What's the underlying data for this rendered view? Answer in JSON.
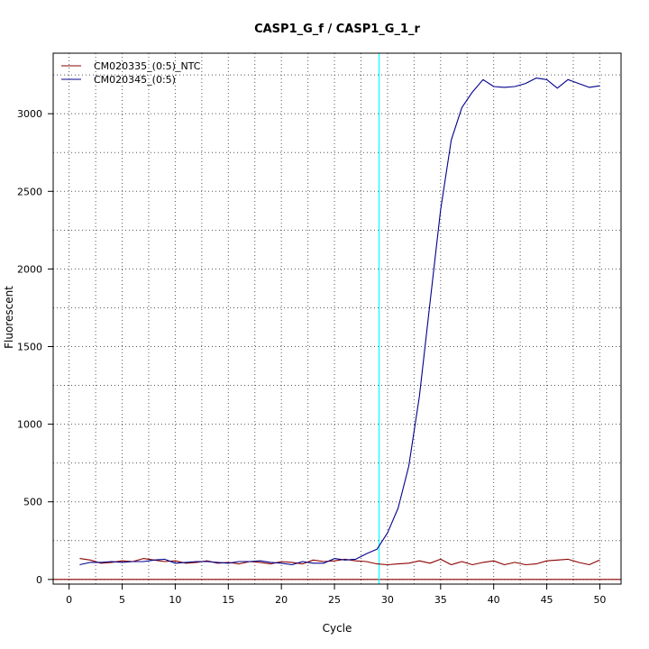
{
  "chart_data": {
    "type": "line",
    "title": "CASP1_G_f / CASP1_G_1_r",
    "xlabel": "Cycle",
    "ylabel": "Fluorescent",
    "xlim": [
      -1.5,
      52
    ],
    "ylim": [
      -30,
      3390
    ],
    "x_ticks": [
      0,
      5,
      10,
      15,
      20,
      25,
      30,
      35,
      40,
      45,
      50
    ],
    "y_ticks": [
      0,
      500,
      1000,
      1500,
      2000,
      2500,
      3000
    ],
    "grid": true,
    "legend_position": "top-left",
    "threshold": {
      "axis": "x",
      "value": 29.2,
      "color": "#00ffff"
    },
    "baseline": {
      "axis": "y",
      "value": 0,
      "color": "#8b0000"
    },
    "series": [
      {
        "name": "CM020335_(0:5)_NTC",
        "color": "#8b0000",
        "x": [
          1,
          2,
          3,
          4,
          5,
          6,
          7,
          8,
          9,
          10,
          11,
          12,
          13,
          14,
          15,
          16,
          17,
          18,
          19,
          20,
          21,
          22,
          23,
          24,
          25,
          26,
          27,
          28,
          29,
          30,
          31,
          32,
          33,
          34,
          35,
          36,
          37,
          38,
          39,
          40,
          41,
          42,
          43,
          44,
          45,
          46,
          47,
          48,
          49,
          50
        ],
        "values": [
          135,
          125,
          105,
          110,
          120,
          115,
          135,
          125,
          115,
          120,
          105,
          110,
          120,
          105,
          110,
          100,
          115,
          110,
          100,
          115,
          110,
          100,
          125,
          115,
          120,
          130,
          120,
          115,
          100,
          95,
          100,
          105,
          120,
          105,
          130,
          95,
          115,
          95,
          110,
          120,
          95,
          110,
          95,
          100,
          120,
          125,
          130,
          110,
          95,
          125
        ]
      },
      {
        "name": "CM020345_(0:5)",
        "color": "#00008b",
        "x": [
          1,
          2,
          3,
          4,
          5,
          6,
          7,
          8,
          9,
          10,
          11,
          12,
          13,
          14,
          15,
          16,
          17,
          18,
          19,
          20,
          21,
          22,
          23,
          24,
          25,
          26,
          27,
          28,
          29,
          30,
          31,
          32,
          33,
          34,
          35,
          36,
          37,
          38,
          39,
          40,
          41,
          42,
          43,
          44,
          45,
          46,
          47,
          48,
          49,
          50
        ],
        "values": [
          95,
          110,
          110,
          115,
          110,
          115,
          115,
          125,
          130,
          105,
          110,
          115,
          115,
          110,
          105,
          115,
          115,
          120,
          110,
          105,
          95,
          115,
          105,
          105,
          135,
          125,
          130,
          165,
          195,
          300,
          460,
          730,
          1180,
          1780,
          2380,
          2830,
          3040,
          3140,
          3220,
          3175,
          3170,
          3175,
          3195,
          3230,
          3220,
          3165,
          3220,
          3195,
          3170,
          3180
        ]
      }
    ]
  }
}
